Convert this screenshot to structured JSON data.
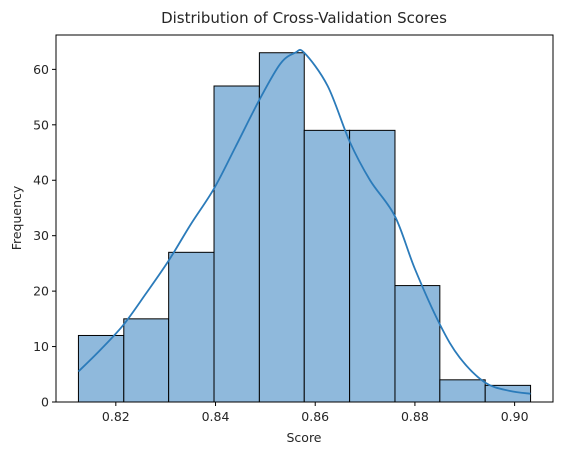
{
  "chart_data": {
    "type": "bar",
    "title": "Distribution of Cross-Validation Scores",
    "xlabel": "Score",
    "ylabel": "Frequency",
    "bins": [
      {
        "start": 0.8125,
        "end": 0.8216,
        "count": 12
      },
      {
        "start": 0.8216,
        "end": 0.8306,
        "count": 15
      },
      {
        "start": 0.8306,
        "end": 0.8397,
        "count": 27
      },
      {
        "start": 0.8397,
        "end": 0.8488,
        "count": 57
      },
      {
        "start": 0.8488,
        "end": 0.8578,
        "count": 63
      },
      {
        "start": 0.8578,
        "end": 0.8669,
        "count": 49
      },
      {
        "start": 0.8669,
        "end": 0.876,
        "count": 49
      },
      {
        "start": 0.876,
        "end": 0.885,
        "count": 21
      },
      {
        "start": 0.885,
        "end": 0.8941,
        "count": 4
      },
      {
        "start": 0.8941,
        "end": 0.9032,
        "count": 3
      }
    ],
    "kde": {
      "x": [
        0.8125,
        0.817,
        0.8216,
        0.826,
        0.8306,
        0.835,
        0.8397,
        0.844,
        0.8488,
        0.853,
        0.856,
        0.8578,
        0.8625,
        0.8669,
        0.871,
        0.876,
        0.88,
        0.885,
        0.889,
        0.8941,
        0.899,
        0.9032
      ],
      "y": [
        5.5,
        9.5,
        14.0,
        19.5,
        25.5,
        32.0,
        38.5,
        46.0,
        54.5,
        61.0,
        63.0,
        63.0,
        57.0,
        47.0,
        40.0,
        33.5,
        24.0,
        14.0,
        8.0,
        3.5,
        2.0,
        1.5
      ]
    },
    "xticks": [
      "0.82",
      "0.84",
      "0.86",
      "0.88",
      "0.90"
    ],
    "xtick_values": [
      0.82,
      0.84,
      0.86,
      0.88,
      0.9
    ],
    "yticks": [
      "0",
      "10",
      "20",
      "30",
      "40",
      "50",
      "60"
    ],
    "ytick_values": [
      0,
      10,
      20,
      30,
      40,
      50,
      60
    ],
    "xlim": [
      0.808,
      0.9077
    ],
    "ylim": [
      0,
      66.2
    ],
    "bar_color": "#8fb9dc",
    "edge_color": "#000000",
    "line_color": "#2b7bba",
    "grid": false
  }
}
